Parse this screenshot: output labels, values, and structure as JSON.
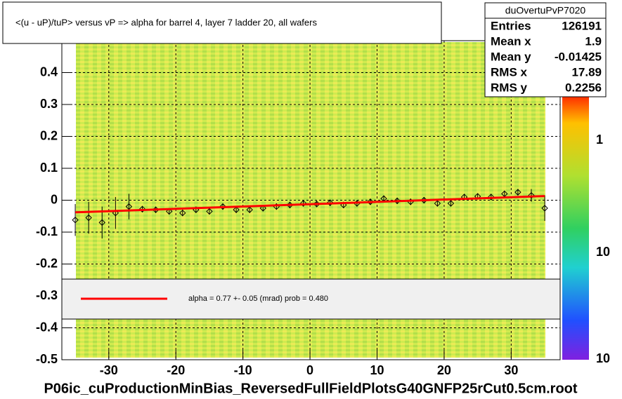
{
  "chart_data": {
    "type": "profile",
    "title": "<(u - uP)/tuP>  versus   vP => alpha for barrel 4, layer 7 ladder 20, all wafers",
    "xlim": [
      -37,
      37.3
    ],
    "ylim": [
      -0.5,
      0.5
    ],
    "xticks": [
      -30,
      -20,
      -10,
      0,
      10,
      20,
      30
    ],
    "yticks": [
      -0.5,
      -0.4,
      -0.3,
      -0.2,
      -0.1,
      0,
      0.1,
      0.2,
      0.3,
      0.4
    ],
    "grid": true,
    "x": [
      -35,
      -33,
      -31,
      -29,
      -27,
      -25,
      -23,
      -21,
      -19,
      -17,
      -15,
      -13,
      -11,
      -9,
      -7,
      -5,
      -3,
      -1,
      1,
      3,
      5,
      7,
      9,
      11,
      13,
      15,
      17,
      19,
      21,
      23,
      25,
      27,
      29,
      31,
      33,
      35
    ],
    "series": [
      {
        "name": "profile",
        "color": "#000000",
        "values": [
          -0.062,
          -0.055,
          -0.07,
          -0.04,
          -0.02,
          -0.028,
          -0.03,
          -0.035,
          -0.04,
          -0.03,
          -0.035,
          -0.02,
          -0.03,
          -0.03,
          -0.025,
          -0.02,
          -0.015,
          -0.01,
          -0.012,
          -0.008,
          -0.015,
          -0.01,
          -0.005,
          0.005,
          -0.002,
          -0.005,
          0.0,
          -0.01,
          -0.01,
          0.01,
          0.012,
          0.01,
          0.02,
          0.025,
          0.015,
          -0.025
        ],
        "errors": [
          0.05,
          0.05,
          0.05,
          0.05,
          0.04,
          0.01,
          0.01,
          0.01,
          0.01,
          0.01,
          0.01,
          0.01,
          0.01,
          0.01,
          0.01,
          0.01,
          0.01,
          0.01,
          0.01,
          0.01,
          0.01,
          0.01,
          0.01,
          0.01,
          0.01,
          0.01,
          0.01,
          0.01,
          0.01,
          0.01,
          0.01,
          0.01,
          0.01,
          0.01,
          0.02,
          0.04
        ]
      }
    ],
    "fit": {
      "color": "#ff0000",
      "x": [
        -35,
        35
      ],
      "values": [
        -0.038,
        0.013
      ]
    },
    "fit_label": "alpha =    0.77 +-  0.05 (mrad) prob = 0.480",
    "stats": {
      "name": "duOvertuPvP7020",
      "rows": [
        [
          "Entries",
          "126191"
        ],
        [
          "Mean x",
          "1.9"
        ],
        [
          "Mean y",
          "-0.01425"
        ],
        [
          "RMS x",
          "17.89"
        ],
        [
          "RMS y",
          "0.2256"
        ]
      ]
    },
    "colorbar_labels": [
      "1",
      "10",
      "10"
    ],
    "footer": "P06ic_cuProductionMinBias_ReversedFullFieldPlotsG40GNFP25rCut0.5cm.root"
  }
}
